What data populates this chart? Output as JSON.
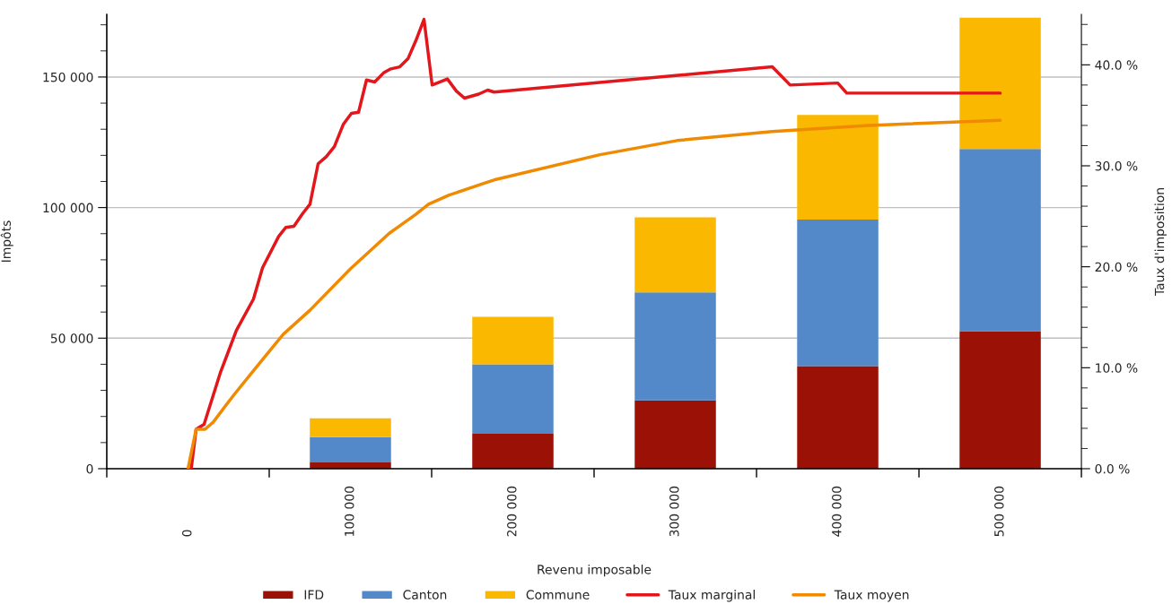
{
  "chart_data": {
    "type": "bar",
    "stacked": true,
    "xlabel": "Revenu imposable",
    "ylabel": "Impôts",
    "y2label": "Taux d'imposition",
    "x": [
      100000,
      200000,
      300000,
      400000,
      500000
    ],
    "xlim": [
      -50000,
      550000
    ],
    "xticks": [
      {
        "value": -50000,
        "label": null
      },
      {
        "value": 0,
        "label": "0"
      },
      {
        "value": 50000,
        "label": null
      },
      {
        "value": 100000,
        "label": "100 000"
      },
      {
        "value": 150000,
        "label": null
      },
      {
        "value": 200000,
        "label": "200 000"
      },
      {
        "value": 250000,
        "label": null
      },
      {
        "value": 300000,
        "label": "300 000"
      },
      {
        "value": 350000,
        "label": null
      },
      {
        "value": 400000,
        "label": "400 000"
      },
      {
        "value": 450000,
        "label": null
      },
      {
        "value": 500000,
        "label": "500 000"
      },
      {
        "value": 550000,
        "label": null
      }
    ],
    "ylim": [
      0,
      174000
    ],
    "yticks": [
      {
        "value": 0,
        "label": "0"
      },
      {
        "value": 10000,
        "label": null
      },
      {
        "value": 20000,
        "label": null
      },
      {
        "value": 30000,
        "label": null
      },
      {
        "value": 40000,
        "label": null
      },
      {
        "value": 50000,
        "label": "50 000"
      },
      {
        "value": 60000,
        "label": null
      },
      {
        "value": 70000,
        "label": null
      },
      {
        "value": 80000,
        "label": null
      },
      {
        "value": 90000,
        "label": null
      },
      {
        "value": 100000,
        "label": "100 000"
      },
      {
        "value": 110000,
        "label": null
      },
      {
        "value": 120000,
        "label": null
      },
      {
        "value": 130000,
        "label": null
      },
      {
        "value": 140000,
        "label": null
      },
      {
        "value": 150000,
        "label": "150 000"
      },
      {
        "value": 160000,
        "label": null
      },
      {
        "value": 170000,
        "label": null
      }
    ],
    "y2lim": [
      0,
      45
    ],
    "y2ticks": [
      {
        "value": 0,
        "label": "0.0 %"
      },
      {
        "value": 2,
        "label": null
      },
      {
        "value": 4,
        "label": null
      },
      {
        "value": 6,
        "label": null
      },
      {
        "value": 8,
        "label": null
      },
      {
        "value": 10,
        "label": "10.0 %"
      },
      {
        "value": 12,
        "label": null
      },
      {
        "value": 14,
        "label": null
      },
      {
        "value": 16,
        "label": null
      },
      {
        "value": 18,
        "label": null
      },
      {
        "value": 20,
        "label": "20.0 %"
      },
      {
        "value": 22,
        "label": null
      },
      {
        "value": 24,
        "label": null
      },
      {
        "value": 26,
        "label": null
      },
      {
        "value": 28,
        "label": null
      },
      {
        "value": 30,
        "label": "30.0 %"
      },
      {
        "value": 32,
        "label": null
      },
      {
        "value": 34,
        "label": null
      },
      {
        "value": 36,
        "label": null
      },
      {
        "value": 38,
        "label": null
      },
      {
        "value": 40,
        "label": "40.0 %"
      },
      {
        "value": 42,
        "label": null
      },
      {
        "value": 44,
        "label": null
      }
    ],
    "grid": "y",
    "legend": "bottom",
    "series": [
      {
        "name": "IFD",
        "color": "#9b1106",
        "values": [
          2400,
          13400,
          26200,
          39300,
          52700
        ]
      },
      {
        "name": "Canton",
        "color": "#5389c9",
        "values": [
          9700,
          26600,
          41300,
          56100,
          69700
        ]
      },
      {
        "name": "Commune",
        "color": "#fab900",
        "values": [
          7200,
          18200,
          28800,
          40100,
          50300
        ]
      },
      {
        "name": "Taux marginal",
        "type": "line",
        "axis": "y2",
        "color": "#e3161b",
        "x": [
          0,
          2000,
          5000,
          9900,
          19900,
          29800,
          40300,
          45900,
          55800,
          60200,
          65200,
          70700,
          75100,
          80100,
          85100,
          90100,
          95600,
          100600,
          105000,
          109900,
          114900,
          120400,
          124900,
          130400,
          135400,
          140300,
          145300,
          150300,
          159700,
          165200,
          170200,
          179000,
          184500,
          188400,
          359700,
          370700,
          400000,
          405500,
          500000
        ],
        "values": [
          0,
          0,
          3.9,
          4.4,
          9.5,
          13.7,
          16.8,
          19.9,
          23.0,
          23.9,
          24.0,
          25.3,
          26.2,
          30.2,
          30.9,
          31.9,
          34.1,
          35.2,
          35.3,
          38.5,
          38.3,
          39.2,
          39.6,
          39.8,
          40.6,
          42.4,
          44.5,
          38.0,
          38.6,
          37.4,
          36.7,
          37.1,
          37.5,
          37.3,
          39.8,
          38.0,
          38.2,
          37.2,
          37.2
        ]
      },
      {
        "name": "Taux moyen",
        "type": "line",
        "axis": "y2",
        "color": "#f08a00",
        "x": [
          0,
          5000,
          10500,
          15500,
          28200,
          44800,
          58600,
          75100,
          100000,
          123800,
          140300,
          148100,
          160800,
          182900,
          188400,
          253600,
          301100,
          359700,
          418800,
          500000
        ],
        "values": [
          0,
          3.9,
          3.9,
          4.6,
          7.3,
          10.6,
          13.3,
          15.7,
          19.8,
          23.3,
          25.2,
          26.2,
          27.1,
          28.3,
          28.6,
          31.1,
          32.5,
          33.4,
          34.0,
          34.5
        ]
      }
    ]
  }
}
